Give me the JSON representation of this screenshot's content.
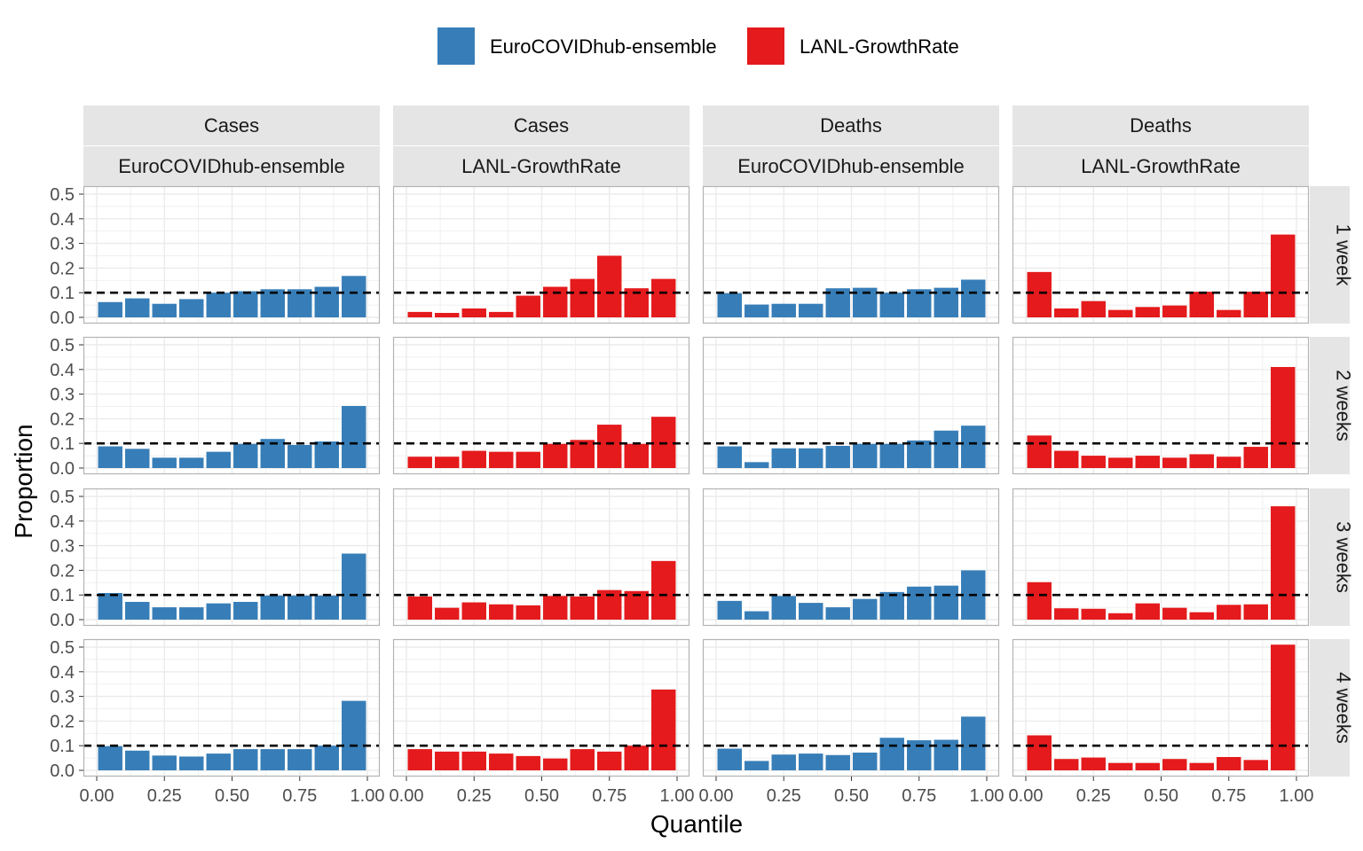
{
  "colors": {
    "EuroCOVIDhub-ensemble": "#377eb8",
    "LANL-GrowthRate": "#e41a1c",
    "grid": "#ebebeb",
    "panel_border": "#b3b3b3",
    "strip_fill": "#e5e5e5",
    "reference_line": "#000000"
  },
  "legend": {
    "items": [
      {
        "label": "EuroCOVIDhub-ensemble",
        "color": "#377eb8"
      },
      {
        "label": "LANL-GrowthRate",
        "color": "#e41a1c"
      }
    ]
  },
  "chart_data": {
    "type": "bar",
    "facet_layout": "grid",
    "xlabel": "Quantile",
    "ylabel": "Proportion",
    "xlim": [
      0,
      1
    ],
    "ylim": [
      0,
      0.5
    ],
    "xticks": [
      "0.00",
      "0.25",
      "0.50",
      "0.75",
      "1.00"
    ],
    "yticks": [
      "0.0",
      "0.1",
      "0.2",
      "0.3",
      "0.4",
      "0.5"
    ],
    "reference_line": {
      "y": 0.1,
      "style": "dashed"
    },
    "bin_centers": [
      0.05,
      0.15,
      0.25,
      0.35,
      0.45,
      0.55,
      0.65,
      0.75,
      0.85,
      0.95
    ],
    "bin_width": 0.09,
    "columns": [
      {
        "target": "Cases",
        "model": "EuroCOVIDhub-ensemble"
      },
      {
        "target": "Cases",
        "model": "LANL-GrowthRate"
      },
      {
        "target": "Deaths",
        "model": "EuroCOVIDhub-ensemble"
      },
      {
        "target": "Deaths",
        "model": "LANL-GrowthRate"
      }
    ],
    "rows": [
      "1 week",
      "2 weeks",
      "3 weeks",
      "4 weeks"
    ],
    "values": [
      [
        [
          0.062,
          0.077,
          0.055,
          0.074,
          0.1,
          0.106,
          0.114,
          0.114,
          0.124,
          0.168
        ],
        [
          0.022,
          0.018,
          0.036,
          0.022,
          0.088,
          0.124,
          0.156,
          0.25,
          0.118,
          0.156
        ],
        [
          0.098,
          0.052,
          0.055,
          0.055,
          0.118,
          0.12,
          0.1,
          0.114,
          0.12,
          0.153
        ],
        [
          0.184,
          0.036,
          0.066,
          0.03,
          0.042,
          0.048,
          0.104,
          0.03,
          0.104,
          0.336
        ]
      ],
      [
        [
          0.088,
          0.078,
          0.042,
          0.042,
          0.066,
          0.098,
          0.118,
          0.094,
          0.108,
          0.252
        ],
        [
          0.046,
          0.046,
          0.07,
          0.066,
          0.066,
          0.098,
          0.114,
          0.176,
          0.098,
          0.208
        ],
        [
          0.088,
          0.024,
          0.08,
          0.08,
          0.09,
          0.098,
          0.098,
          0.112,
          0.152,
          0.172
        ],
        [
          0.132,
          0.07,
          0.05,
          0.042,
          0.05,
          0.042,
          0.056,
          0.046,
          0.086,
          0.41
        ]
      ],
      [
        [
          0.108,
          0.072,
          0.05,
          0.05,
          0.066,
          0.072,
          0.098,
          0.098,
          0.098,
          0.268
        ],
        [
          0.094,
          0.048,
          0.07,
          0.062,
          0.058,
          0.096,
          0.094,
          0.12,
          0.116,
          0.238
        ],
        [
          0.076,
          0.034,
          0.096,
          0.068,
          0.05,
          0.084,
          0.112,
          0.134,
          0.138,
          0.2
        ],
        [
          0.152,
          0.046,
          0.044,
          0.026,
          0.066,
          0.048,
          0.03,
          0.06,
          0.062,
          0.46
        ]
      ],
      [
        [
          0.098,
          0.08,
          0.06,
          0.056,
          0.068,
          0.086,
          0.086,
          0.086,
          0.1,
          0.282
        ],
        [
          0.086,
          0.076,
          0.076,
          0.068,
          0.058,
          0.048,
          0.086,
          0.076,
          0.1,
          0.328
        ],
        [
          0.088,
          0.038,
          0.064,
          0.068,
          0.062,
          0.072,
          0.132,
          0.122,
          0.124,
          0.218
        ],
        [
          0.142,
          0.046,
          0.052,
          0.03,
          0.03,
          0.046,
          0.03,
          0.054,
          0.042,
          0.51
        ]
      ]
    ]
  }
}
